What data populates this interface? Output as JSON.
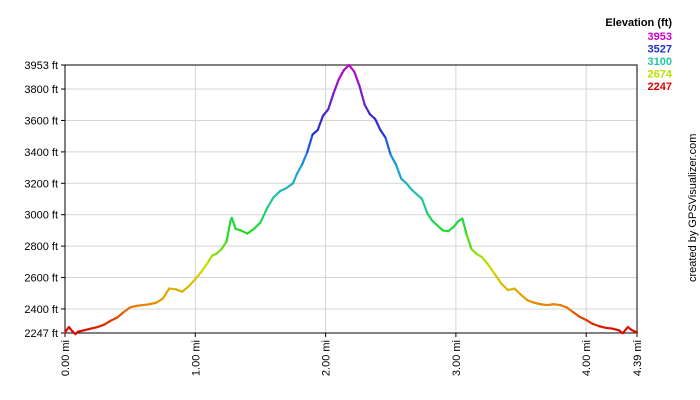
{
  "chart_data": {
    "type": "line",
    "xlabel": "",
    "ylabel": "",
    "x_unit": "mi",
    "y_unit": "ft",
    "xlim": [
      0,
      4.39
    ],
    "ylim": [
      2247,
      3953
    ],
    "x_ticks": [
      {
        "value": 0.0,
        "label": "0.00 mi"
      },
      {
        "value": 1.0,
        "label": "1.00 mi"
      },
      {
        "value": 2.0,
        "label": "2.00 mi"
      },
      {
        "value": 3.0,
        "label": "3.00 mi"
      },
      {
        "value": 4.0,
        "label": "4.00 mi"
      },
      {
        "value": 4.39,
        "label": "4.39 mi"
      }
    ],
    "y_ticks": [
      {
        "value": 2247,
        "label": "2247 ft"
      },
      {
        "value": 2400,
        "label": "2400 ft"
      },
      {
        "value": 2600,
        "label": "2600 ft"
      },
      {
        "value": 2800,
        "label": "2800 ft"
      },
      {
        "value": 3000,
        "label": "3000 ft"
      },
      {
        "value": 3200,
        "label": "3200 ft"
      },
      {
        "value": 3400,
        "label": "3400 ft"
      },
      {
        "value": 3600,
        "label": "3600 ft"
      },
      {
        "value": 3800,
        "label": "3800 ft"
      },
      {
        "value": 3953,
        "label": "3953 ft"
      }
    ],
    "grid": true,
    "legend": {
      "title": "Elevation (ft)",
      "placement": "top-right",
      "entries": [
        {
          "label": "3953",
          "color": "#cc00cc"
        },
        {
          "label": "3527",
          "color": "#1f2fd6"
        },
        {
          "label": "3100",
          "color": "#22c4a4"
        },
        {
          "label": "2674",
          "color": "#b8e000"
        },
        {
          "label": "2247",
          "color": "#dd0000"
        }
      ]
    },
    "color_scale": [
      {
        "value": 2247,
        "color": "#dd0000"
      },
      {
        "value": 2460,
        "color": "#e89a00"
      },
      {
        "value": 2674,
        "color": "#c8e000"
      },
      {
        "value": 2890,
        "color": "#22dd22"
      },
      {
        "value": 3100,
        "color": "#22c4a4"
      },
      {
        "value": 3310,
        "color": "#1a9ee0"
      },
      {
        "value": 3527,
        "color": "#1f2fd6"
      },
      {
        "value": 3740,
        "color": "#6a20d0"
      },
      {
        "value": 3953,
        "color": "#cc00cc"
      }
    ],
    "series": [
      {
        "points": [
          [
            0.0,
            2250
          ],
          [
            0.03,
            2285
          ],
          [
            0.06,
            2255
          ],
          [
            0.08,
            2240
          ],
          [
            0.1,
            2255
          ],
          [
            0.15,
            2265
          ],
          [
            0.2,
            2275
          ],
          [
            0.25,
            2285
          ],
          [
            0.3,
            2300
          ],
          [
            0.35,
            2325
          ],
          [
            0.4,
            2345
          ],
          [
            0.45,
            2380
          ],
          [
            0.5,
            2410
          ],
          [
            0.55,
            2420
          ],
          [
            0.6,
            2425
          ],
          [
            0.65,
            2430
          ],
          [
            0.7,
            2440
          ],
          [
            0.75,
            2465
          ],
          [
            0.8,
            2530
          ],
          [
            0.85,
            2525
          ],
          [
            0.9,
            2510
          ],
          [
            0.95,
            2545
          ],
          [
            1.0,
            2590
          ],
          [
            1.05,
            2640
          ],
          [
            1.1,
            2700
          ],
          [
            1.13,
            2740
          ],
          [
            1.16,
            2750
          ],
          [
            1.2,
            2780
          ],
          [
            1.24,
            2830
          ],
          [
            1.27,
            2960
          ],
          [
            1.28,
            2980
          ],
          [
            1.31,
            2910
          ],
          [
            1.35,
            2900
          ],
          [
            1.4,
            2880
          ],
          [
            1.45,
            2910
          ],
          [
            1.5,
            2950
          ],
          [
            1.55,
            3040
          ],
          [
            1.6,
            3110
          ],
          [
            1.65,
            3150
          ],
          [
            1.7,
            3170
          ],
          [
            1.75,
            3200
          ],
          [
            1.78,
            3260
          ],
          [
            1.82,
            3320
          ],
          [
            1.86,
            3400
          ],
          [
            1.9,
            3510
          ],
          [
            1.94,
            3540
          ],
          [
            1.98,
            3630
          ],
          [
            2.02,
            3670
          ],
          [
            2.06,
            3770
          ],
          [
            2.1,
            3860
          ],
          [
            2.14,
            3920
          ],
          [
            2.18,
            3953
          ],
          [
            2.22,
            3910
          ],
          [
            2.26,
            3820
          ],
          [
            2.3,
            3700
          ],
          [
            2.34,
            3640
          ],
          [
            2.38,
            3610
          ],
          [
            2.42,
            3540
          ],
          [
            2.46,
            3490
          ],
          [
            2.5,
            3380
          ],
          [
            2.54,
            3320
          ],
          [
            2.58,
            3230
          ],
          [
            2.62,
            3200
          ],
          [
            2.66,
            3160
          ],
          [
            2.7,
            3130
          ],
          [
            2.74,
            3100
          ],
          [
            2.78,
            3010
          ],
          [
            2.82,
            2960
          ],
          [
            2.86,
            2930
          ],
          [
            2.9,
            2900
          ],
          [
            2.94,
            2895
          ],
          [
            2.98,
            2920
          ],
          [
            3.02,
            2960
          ],
          [
            3.05,
            2975
          ],
          [
            3.08,
            2880
          ],
          [
            3.12,
            2780
          ],
          [
            3.16,
            2750
          ],
          [
            3.2,
            2730
          ],
          [
            3.25,
            2680
          ],
          [
            3.3,
            2620
          ],
          [
            3.35,
            2560
          ],
          [
            3.4,
            2520
          ],
          [
            3.45,
            2530
          ],
          [
            3.5,
            2490
          ],
          [
            3.55,
            2455
          ],
          [
            3.6,
            2440
          ],
          [
            3.65,
            2430
          ],
          [
            3.7,
            2425
          ],
          [
            3.75,
            2430
          ],
          [
            3.8,
            2425
          ],
          [
            3.85,
            2410
          ],
          [
            3.9,
            2380
          ],
          [
            3.95,
            2350
          ],
          [
            4.0,
            2330
          ],
          [
            4.05,
            2305
          ],
          [
            4.1,
            2290
          ],
          [
            4.15,
            2280
          ],
          [
            4.2,
            2275
          ],
          [
            4.25,
            2265
          ],
          [
            4.28,
            2245
          ],
          [
            4.32,
            2285
          ],
          [
            4.35,
            2265
          ],
          [
            4.39,
            2250
          ]
        ]
      }
    ],
    "credit": "created by GPSVisualizer.com"
  }
}
